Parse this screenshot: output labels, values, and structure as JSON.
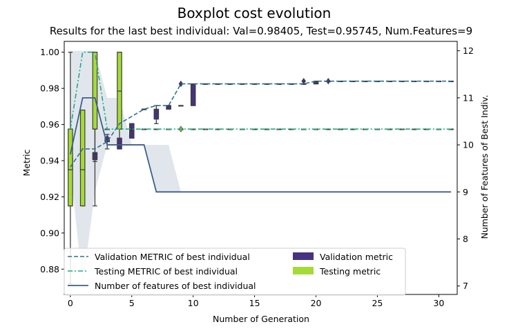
{
  "chart_data": {
    "type": "box",
    "title": "Boxplot cost evolution",
    "subtitle": "Results for the last best individual: Val=0.98405, Test=0.95745, Num.Features=9",
    "xlabel": "Number of Generation",
    "ylabel": "Metric",
    "y2label": "Number of Features of Best Indiv.",
    "xlim": [
      -0.5,
      31.5
    ],
    "ylim": [
      0.866,
      1.006
    ],
    "y2lim": [
      6.82,
      12.2
    ],
    "xticks": [
      0,
      5,
      10,
      15,
      20,
      25,
      30
    ],
    "yticks": [
      0.88,
      0.9,
      0.92,
      0.94,
      0.96,
      0.98,
      1.0
    ],
    "y2ticks": [
      7,
      8,
      9,
      10,
      11,
      12
    ],
    "colors": {
      "validation_box": "#46327e",
      "testing_box": "#a5db36",
      "validation_line": "#2c728e",
      "testing_line": "#22a884",
      "features_line": "#3b5e8c",
      "band": "#e1e6ed"
    },
    "legend": {
      "placement": "lower center",
      "entries": [
        "Validation METRIC of best individual",
        "Testing METRIC of best individual",
        "Number of features of best individual",
        "Validation metric",
        "Testing metric"
      ]
    },
    "validation_best": {
      "x": [
        0,
        1,
        2,
        3,
        4,
        5,
        6,
        7,
        8,
        9,
        10,
        11,
        12,
        13,
        14,
        15,
        16,
        17,
        18,
        19,
        20,
        21,
        22,
        23,
        24,
        25,
        26,
        27,
        28,
        29,
        30,
        31
      ],
      "y": [
        0.9365,
        0.9465,
        0.9465,
        0.9505,
        0.9605,
        0.9645,
        0.9685,
        0.9705,
        0.9705,
        0.9825,
        0.9825,
        0.9825,
        0.9825,
        0.9825,
        0.9825,
        0.9825,
        0.9825,
        0.9825,
        0.9825,
        0.9825,
        0.984,
        0.984,
        0.984,
        0.984,
        0.984,
        0.984,
        0.984,
        0.984,
        0.984,
        0.984,
        0.984,
        0.984
      ]
    },
    "testing_best": {
      "x": [
        0,
        1,
        2,
        3,
        4,
        5,
        6,
        7,
        8,
        9,
        10,
        11,
        12,
        13,
        14,
        15,
        16,
        17,
        18,
        19,
        20,
        21,
        22,
        23,
        24,
        25,
        26,
        27,
        28,
        29,
        30,
        31
      ],
      "y": [
        0.9575,
        1.0,
        1.0,
        0.9575,
        0.9575,
        0.9575,
        0.9575,
        0.9575,
        0.9575,
        0.9575,
        0.9575,
        0.9575,
        0.9575,
        0.9575,
        0.9575,
        0.9575,
        0.9575,
        0.9575,
        0.9575,
        0.9575,
        0.9575,
        0.9575,
        0.9575,
        0.9575,
        0.9575,
        0.9575,
        0.9575,
        0.9575,
        0.9575,
        0.9575,
        0.9575,
        0.9575
      ]
    },
    "features_best": {
      "x": [
        0,
        1,
        2,
        3,
        4,
        5,
        6,
        7,
        8,
        9,
        10,
        11,
        12,
        13,
        14,
        15,
        16,
        17,
        18,
        19,
        20,
        21,
        22,
        23,
        24,
        25,
        26,
        27,
        28,
        29,
        30,
        31
      ],
      "y": [
        9.8,
        11.0,
        11.0,
        10.0,
        10.0,
        10.0,
        10.0,
        9.0,
        9.0,
        9.0,
        9.0,
        9.0,
        9.0,
        9.0,
        9.0,
        9.0,
        9.0,
        9.0,
        9.0,
        9.0,
        9.0,
        9.0,
        9.0,
        9.0,
        9.0,
        9.0,
        9.0,
        9.0,
        9.0,
        9.0,
        9.0,
        9.0
      ]
    },
    "features_band": {
      "x": [
        0,
        1,
        2,
        3,
        4,
        5,
        6,
        7,
        8,
        9
      ],
      "low": [
        9.5,
        7.0,
        9.0,
        10.0,
        10.0,
        10.0,
        10.0,
        9.0,
        9.0,
        9.0
      ],
      "high": [
        12.0,
        12.0,
        12.0,
        11.0,
        11.0,
        10.0,
        10.0,
        10.0,
        10.0,
        9.0
      ]
    },
    "validation_boxes": [
      {
        "x": 0,
        "whislo": 0.872,
        "q1": 0.935,
        "med": 0.936,
        "q3": 0.9415,
        "whishi": 1.0
      },
      {
        "x": 1,
        "whislo": 0.929,
        "q1": 0.934,
        "med": 0.9355,
        "q3": 0.9465,
        "whishi": 0.9465
      },
      {
        "x": 2,
        "whislo": 0.9395,
        "q1": 0.9405,
        "med": 0.944,
        "q3": 0.9445,
        "whishi": 1.0
      },
      {
        "x": 3,
        "whislo": 0.9465,
        "q1": 0.9505,
        "med": 0.9515,
        "q3": 0.9525,
        "whishi": 0.9545
      },
      {
        "x": 4,
        "whislo": 0.9465,
        "q1": 0.9465,
        "med": 0.949,
        "q3": 0.9525,
        "whishi": 0.9605
      },
      {
        "x": 5,
        "whislo": 0.9525,
        "q1": 0.9525,
        "med": 0.9565,
        "q3": 0.9605,
        "whishi": 0.9605
      },
      {
        "x": 6,
        "whislo": 0.9685,
        "q1": 0.9685,
        "med": 0.9685,
        "q3": 0.9685,
        "whishi": 0.9685
      },
      {
        "x": 7,
        "whislo": 0.9605,
        "q1": 0.963,
        "med": 0.966,
        "q3": 0.9685,
        "whishi": 0.9705
      },
      {
        "x": 8,
        "whislo": 0.9685,
        "q1": 0.9685,
        "med": 0.9705,
        "q3": 0.9705,
        "whishi": 0.9705
      },
      {
        "x": 9,
        "whislo": 0.9705,
        "q1": 0.9705,
        "med": 0.9705,
        "q3": 0.9705,
        "whishi": 0.9705
      },
      {
        "x": 10,
        "whislo": 0.9705,
        "q1": 0.9705,
        "med": 0.978,
        "q3": 0.9825,
        "whishi": 0.9825
      },
      {
        "x": 11,
        "whislo": 0.9825,
        "q1": 0.9825,
        "med": 0.9825,
        "q3": 0.9825,
        "whishi": 0.9825
      },
      {
        "x": 12,
        "whislo": 0.9825,
        "q1": 0.9825,
        "med": 0.9825,
        "q3": 0.9825,
        "whishi": 0.9825
      },
      {
        "x": 13,
        "whislo": 0.9825,
        "q1": 0.9825,
        "med": 0.9825,
        "q3": 0.9825,
        "whishi": 0.9825
      },
      {
        "x": 14,
        "whislo": 0.9825,
        "q1": 0.9825,
        "med": 0.9825,
        "q3": 0.9825,
        "whishi": 0.9825
      },
      {
        "x": 15,
        "whislo": 0.9825,
        "q1": 0.9825,
        "med": 0.9825,
        "q3": 0.9825,
        "whishi": 0.9825
      },
      {
        "x": 16,
        "whislo": 0.9825,
        "q1": 0.9825,
        "med": 0.9825,
        "q3": 0.9825,
        "whishi": 0.9825
      },
      {
        "x": 17,
        "whislo": 0.9825,
        "q1": 0.9825,
        "med": 0.9825,
        "q3": 0.9825,
        "whishi": 0.9825
      },
      {
        "x": 18,
        "whislo": 0.9825,
        "q1": 0.9825,
        "med": 0.9825,
        "q3": 0.9825,
        "whishi": 0.9825
      },
      {
        "x": 19,
        "whislo": 0.9825,
        "q1": 0.9825,
        "med": 0.9825,
        "q3": 0.9825,
        "whishi": 0.9825
      },
      {
        "x": 20,
        "whislo": 0.9825,
        "q1": 0.9825,
        "med": 0.983,
        "q3": 0.984,
        "whishi": 0.984
      },
      {
        "x": 21,
        "whislo": 0.984,
        "q1": 0.984,
        "med": 0.984,
        "q3": 0.984,
        "whishi": 0.984
      },
      {
        "x": 22,
        "whislo": 0.984,
        "q1": 0.984,
        "med": 0.984,
        "q3": 0.984,
        "whishi": 0.984
      },
      {
        "x": 23,
        "whislo": 0.984,
        "q1": 0.984,
        "med": 0.984,
        "q3": 0.984,
        "whishi": 0.984
      },
      {
        "x": 24,
        "whislo": 0.984,
        "q1": 0.984,
        "med": 0.984,
        "q3": 0.984,
        "whishi": 0.984
      },
      {
        "x": 25,
        "whislo": 0.984,
        "q1": 0.984,
        "med": 0.984,
        "q3": 0.984,
        "whishi": 0.984
      },
      {
        "x": 26,
        "whislo": 0.984,
        "q1": 0.984,
        "med": 0.984,
        "q3": 0.984,
        "whishi": 0.984
      },
      {
        "x": 27,
        "whislo": 0.984,
        "q1": 0.984,
        "med": 0.984,
        "q3": 0.984,
        "whishi": 0.984
      },
      {
        "x": 28,
        "whislo": 0.984,
        "q1": 0.984,
        "med": 0.984,
        "q3": 0.984,
        "whishi": 0.984
      },
      {
        "x": 29,
        "whislo": 0.984,
        "q1": 0.984,
        "med": 0.984,
        "q3": 0.984,
        "whishi": 0.984
      },
      {
        "x": 30,
        "whislo": 0.984,
        "q1": 0.984,
        "med": 0.984,
        "q3": 0.984,
        "whishi": 0.984
      },
      {
        "x": 31,
        "whislo": 0.984,
        "q1": 0.984,
        "med": 0.984,
        "q3": 0.984,
        "whishi": 0.984
      }
    ],
    "validation_fliers": [
      {
        "x": 3,
        "y": 0.9525
      },
      {
        "x": 9,
        "y": 0.9825
      },
      {
        "x": 19,
        "y": 0.984
      },
      {
        "x": 21,
        "y": 0.984
      }
    ],
    "testing_boxes": [
      {
        "x": 0,
        "whislo": 0.915,
        "q1": 0.915,
        "med": 0.935,
        "q3": 0.9575,
        "whishi": 0.9575
      },
      {
        "x": 1,
        "whislo": 0.915,
        "q1": 0.915,
        "med": 0.935,
        "q3": 0.968,
        "whishi": 0.968
      },
      {
        "x": 2,
        "whislo": 0.915,
        "q1": 0.9575,
        "med": 0.9575,
        "q3": 1.0,
        "whishi": 1.0
      },
      {
        "x": 3,
        "whislo": 0.9575,
        "q1": 0.9575,
        "med": 0.9575,
        "q3": 0.9575,
        "whishi": 0.9575
      },
      {
        "x": 4,
        "whislo": 0.9575,
        "q1": 0.9575,
        "med": 0.9785,
        "q3": 1.0,
        "whishi": 1.0
      },
      {
        "x": 5,
        "whislo": 0.9575,
        "q1": 0.9575,
        "med": 0.9575,
        "q3": 0.9575,
        "whishi": 0.9575
      },
      {
        "x": 6,
        "whislo": 0.9575,
        "q1": 0.9575,
        "med": 0.9575,
        "q3": 0.9575,
        "whishi": 0.9575
      },
      {
        "x": 7,
        "whislo": 0.9575,
        "q1": 0.9575,
        "med": 0.9575,
        "q3": 0.9575,
        "whishi": 0.9575
      },
      {
        "x": 8,
        "whislo": 0.9575,
        "q1": 0.9575,
        "med": 0.9575,
        "q3": 0.9575,
        "whishi": 0.9575
      },
      {
        "x": 9,
        "whislo": 0.9575,
        "q1": 0.9575,
        "med": 0.9575,
        "q3": 0.9575,
        "whishi": 0.9575
      },
      {
        "x": 10,
        "whislo": 0.9575,
        "q1": 0.9575,
        "med": 0.9575,
        "q3": 0.9575,
        "whishi": 0.9575
      },
      {
        "x": 11,
        "whislo": 0.9575,
        "q1": 0.9575,
        "med": 0.9575,
        "q3": 0.9575,
        "whishi": 0.9575
      },
      {
        "x": 12,
        "whislo": 0.9575,
        "q1": 0.9575,
        "med": 0.9575,
        "q3": 0.9575,
        "whishi": 0.9575
      },
      {
        "x": 13,
        "whislo": 0.9575,
        "q1": 0.9575,
        "med": 0.9575,
        "q3": 0.9575,
        "whishi": 0.9575
      },
      {
        "x": 14,
        "whislo": 0.9575,
        "q1": 0.9575,
        "med": 0.9575,
        "q3": 0.9575,
        "whishi": 0.9575
      },
      {
        "x": 15,
        "whislo": 0.9575,
        "q1": 0.9575,
        "med": 0.9575,
        "q3": 0.9575,
        "whishi": 0.9575
      },
      {
        "x": 16,
        "whislo": 0.9575,
        "q1": 0.9575,
        "med": 0.9575,
        "q3": 0.9575,
        "whishi": 0.9575
      },
      {
        "x": 17,
        "whislo": 0.9575,
        "q1": 0.9575,
        "med": 0.9575,
        "q3": 0.9575,
        "whishi": 0.9575
      },
      {
        "x": 18,
        "whislo": 0.9575,
        "q1": 0.9575,
        "med": 0.9575,
        "q3": 0.9575,
        "whishi": 0.9575
      },
      {
        "x": 19,
        "whislo": 0.9575,
        "q1": 0.9575,
        "med": 0.9575,
        "q3": 0.9575,
        "whishi": 0.9575
      },
      {
        "x": 20,
        "whislo": 0.9575,
        "q1": 0.9575,
        "med": 0.9575,
        "q3": 0.9575,
        "whishi": 0.9575
      },
      {
        "x": 21,
        "whislo": 0.9575,
        "q1": 0.9575,
        "med": 0.9575,
        "q3": 0.9575,
        "whishi": 0.9575
      },
      {
        "x": 22,
        "whislo": 0.9575,
        "q1": 0.9575,
        "med": 0.9575,
        "q3": 0.9575,
        "whishi": 0.9575
      },
      {
        "x": 23,
        "whislo": 0.9575,
        "q1": 0.9575,
        "med": 0.9575,
        "q3": 0.9575,
        "whishi": 0.9575
      },
      {
        "x": 24,
        "whislo": 0.9575,
        "q1": 0.9575,
        "med": 0.9575,
        "q3": 0.9575,
        "whishi": 0.9575
      },
      {
        "x": 25,
        "whislo": 0.9575,
        "q1": 0.9575,
        "med": 0.9575,
        "q3": 0.9575,
        "whishi": 0.9575
      },
      {
        "x": 26,
        "whislo": 0.9575,
        "q1": 0.9575,
        "med": 0.9575,
        "q3": 0.9575,
        "whishi": 0.9575
      },
      {
        "x": 27,
        "whislo": 0.9575,
        "q1": 0.9575,
        "med": 0.9575,
        "q3": 0.9575,
        "whishi": 0.9575
      },
      {
        "x": 28,
        "whislo": 0.9575,
        "q1": 0.9575,
        "med": 0.9575,
        "q3": 0.9575,
        "whishi": 0.9575
      },
      {
        "x": 29,
        "whislo": 0.9575,
        "q1": 0.9575,
        "med": 0.9575,
        "q3": 0.9575,
        "whishi": 0.9575
      },
      {
        "x": 30,
        "whislo": 0.9575,
        "q1": 0.9575,
        "med": 0.9575,
        "q3": 0.9575,
        "whishi": 0.9575
      },
      {
        "x": 31,
        "whislo": 0.9575,
        "q1": 0.9575,
        "med": 0.9575,
        "q3": 0.9575,
        "whishi": 0.9575
      }
    ],
    "testing_fliers": [
      {
        "x": 9,
        "y": 0.9575
      }
    ]
  }
}
